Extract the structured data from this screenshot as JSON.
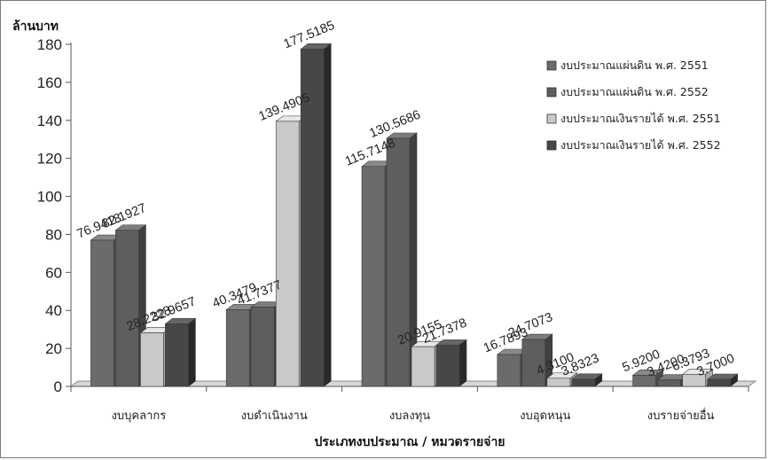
{
  "chart_data": {
    "type": "bar",
    "title": "",
    "ylabel": "ล้านบาท",
    "xlabel": "ประเภทงบประมาณ / หมวดรายจ่าย",
    "ylim": [
      0,
      180
    ],
    "yticks": [
      0,
      20,
      40,
      60,
      80,
      100,
      120,
      140,
      160,
      180
    ],
    "categories": [
      "งบบุคลากร",
      "งบดำเนินงาน",
      "งบลงทุน",
      "งบอุดหนุน",
      "งบรายจ่ายอื่น"
    ],
    "series": [
      {
        "name": "งบประมาณแผ่นดิน พ.ศ. 2551",
        "color": "#6b6b6b",
        "values": [
          76.9418,
          40.3479,
          115.7148,
          16.7893,
          5.92
        ],
        "labels": [
          "76.9418",
          "40.3479",
          "115.7148",
          "16.7893",
          "5.9200"
        ]
      },
      {
        "name": "งบประมาณแผ่นดิน พ.ศ. 2552",
        "color": "#5e5e5e",
        "values": [
          82.1927,
          41.7377,
          130.5686,
          24.7073,
          3.42
        ],
        "labels": [
          "82.1927",
          "41.7377",
          "130.5686",
          "24.7073",
          "3.4200"
        ]
      },
      {
        "name": "งบประมาณเงินรายได้ พ.ศ. 2551",
        "color": "#c9c9c9",
        "values": [
          28.2228,
          139.4905,
          20.9155,
          4.31,
          6.3793
        ],
        "labels": [
          "28.2228",
          "139.4905",
          "20.9155",
          "4.3100",
          "6.3793"
        ]
      },
      {
        "name": "งบประมาณเงินรายได้ พ.ศ. 2552",
        "color": "#474747",
        "values": [
          32.9657,
          177.5185,
          21.7378,
          3.8323,
          3.7
        ],
        "labels": [
          "32.9657",
          "177.5185",
          "21.7378",
          "3.8323",
          "3.7000"
        ]
      }
    ],
    "legend_position": "right",
    "grid": false
  }
}
